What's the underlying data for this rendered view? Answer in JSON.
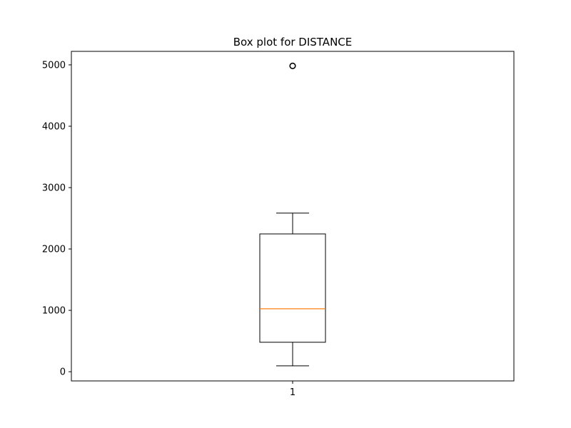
{
  "chart_data": {
    "type": "box",
    "title": "Box plot for DISTANCE",
    "xlabel": "",
    "ylabel": "",
    "categories": [
      "1"
    ],
    "ylim": [
      -150,
      5220
    ],
    "yticks": [
      0,
      1000,
      2000,
      3000,
      4000,
      5000
    ],
    "ytick_labels": [
      "0",
      "1000",
      "2000",
      "3000",
      "4000",
      "5000"
    ],
    "grid": false,
    "boxes": [
      {
        "category": "1",
        "whisker_low": 95,
        "q1": 480,
        "median": 1025,
        "q3": 2245,
        "whisker_high": 2585,
        "outliers": [
          4983
        ]
      }
    ],
    "colors": {
      "box": "#000000",
      "median": "#ff7f0e",
      "outlier": "#000000"
    }
  }
}
